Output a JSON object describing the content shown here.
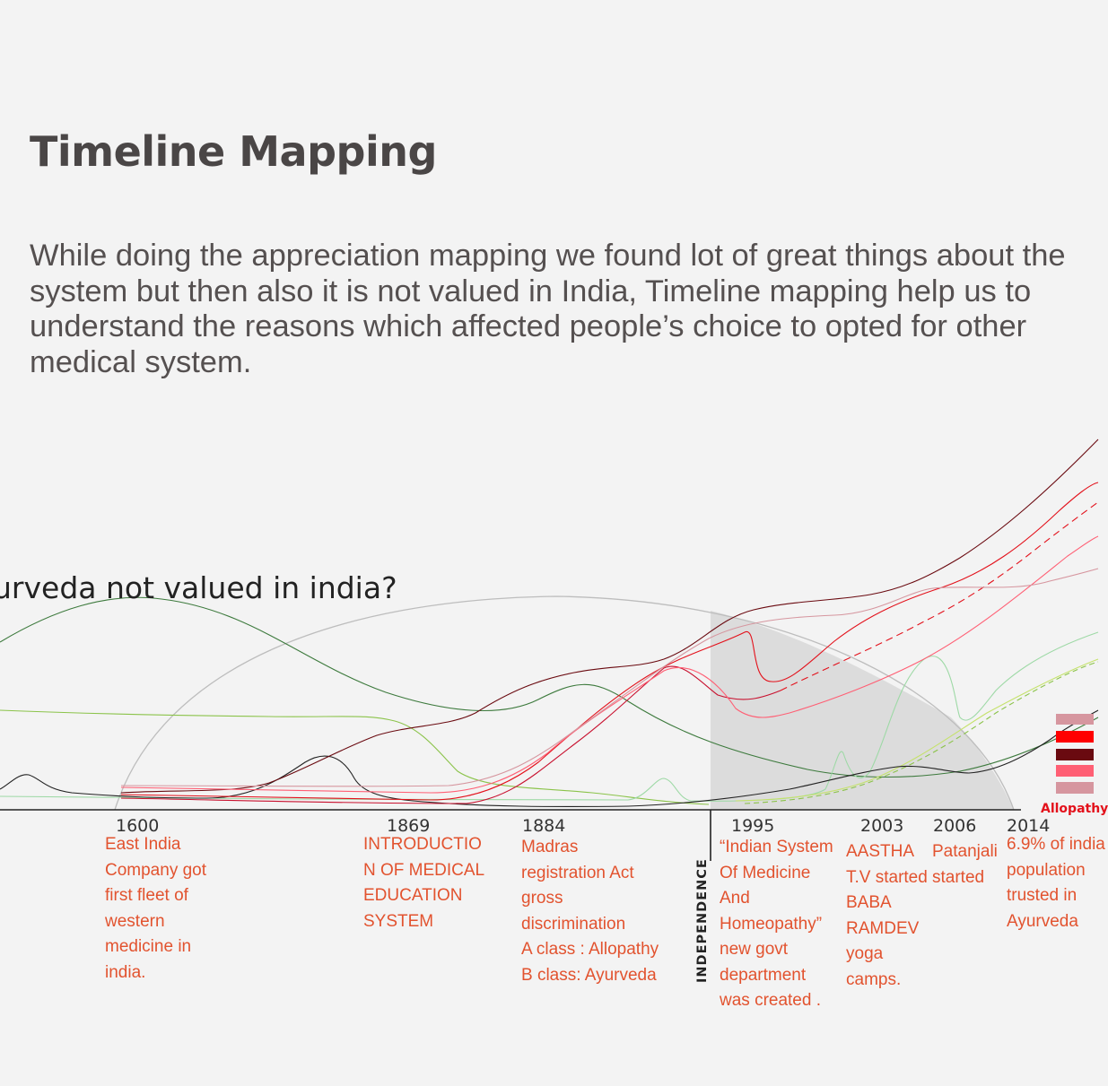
{
  "heading": {
    "title": "Timeline Mapping",
    "intro_lines": [
      "While doing the appreciation mapping we found lot of great things about the",
      "system but then also it is not valued in India, Timeline mapping help us to",
      "understand the reasons which affected people’s choice to opted for other",
      "medical system."
    ]
  },
  "diagram": {
    "question": "urveda not valued in india?",
    "independence_label": "INDEPENDENCE",
    "legend_label": "Allopathy",
    "colors": {
      "axis": "#222222",
      "note_text": "#e2532f",
      "arc_stroke": "#bbbbbb",
      "shade": "#d9d9d9",
      "legend_red": "#e3111b"
    },
    "legend_swatch_colors": [
      "#d6969f",
      "#ff0000",
      "#6a0a10",
      "#ff5f74",
      "#d6969f"
    ],
    "milestones": [
      {
        "year": "1600",
        "note": "East India\nCompany got\nfirst fleet of\nwestern\nmedicine in\nindia."
      },
      {
        "year": "1869",
        "note": "INTRODUCTIO\nN OF MEDICAL\nEDUCATION\nSYSTEM"
      },
      {
        "year": "1884",
        "note": "Madras\nregistration Act\ngross\ndiscrimination\nA class : Allopathy\nB class: Ayurveda"
      },
      {
        "year": "1995",
        "note": "“Indian System\nOf Medicine\nAnd\nHomeopathy”\nnew govt\ndepartment\nwas created ."
      },
      {
        "year": "2003",
        "note": "AASTHA\nT.V started\nBABA\nRAMDEV\nyoga\ncamps."
      },
      {
        "year": "2006",
        "note": "Patanjali\nstarted"
      },
      {
        "year": "2014",
        "note": "6.9% of india\npopulation\ntrusted in\nAyurveda"
      }
    ]
  }
}
